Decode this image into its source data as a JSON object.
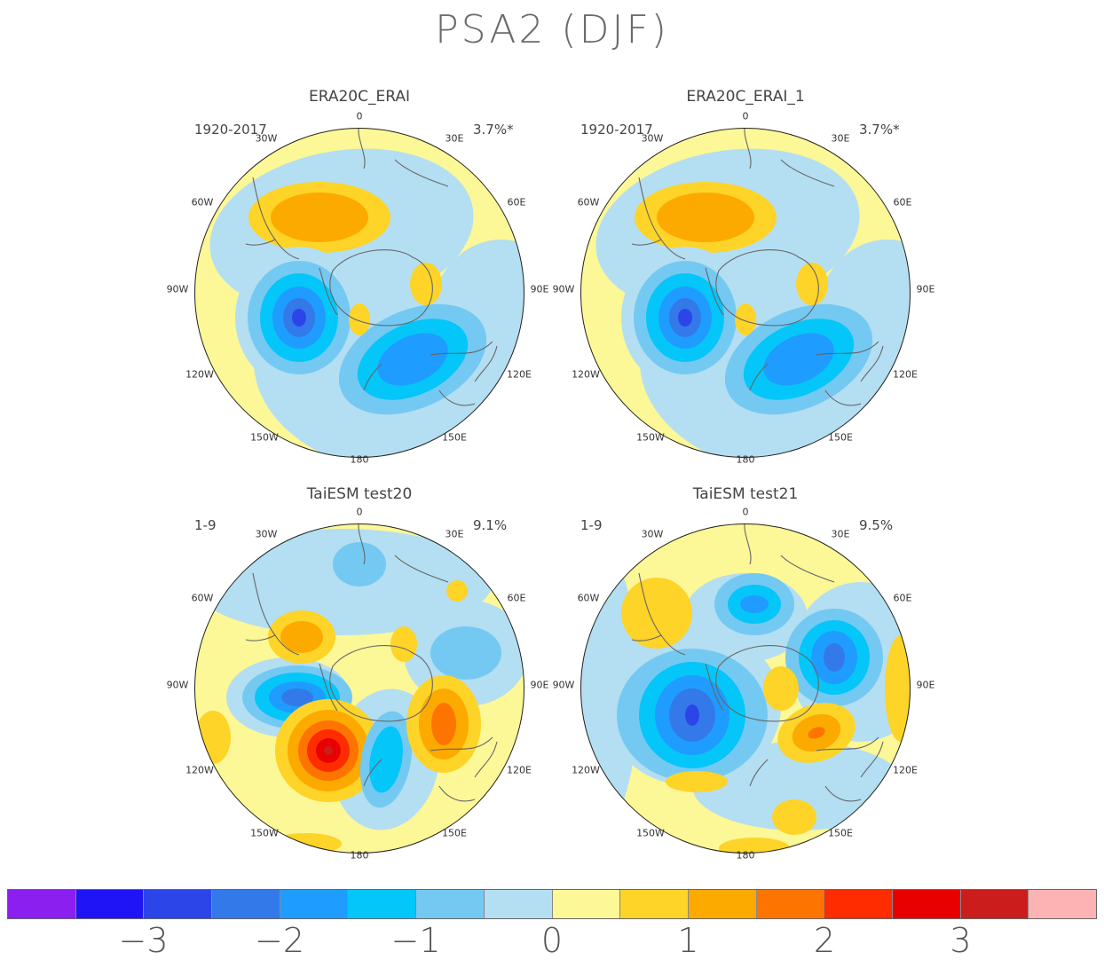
{
  "title": "PSA2 (DJF)",
  "panels": [
    {
      "id": "p1",
      "title": "ERA20C_ERAI",
      "period": "1920-2017",
      "variance": "3.7%*"
    },
    {
      "id": "p2",
      "title": "ERA20C_ERAI_1",
      "period": "1920-2017",
      "variance": "3.7%*"
    },
    {
      "id": "p3",
      "title": "TaiESM test20",
      "period": "1-9",
      "variance": "9.1%"
    },
    {
      "id": "p4",
      "title": "TaiESM test21",
      "period": "1-9",
      "variance": "9.5%"
    }
  ],
  "longitude_labels": {
    "n0": "0",
    "n30w": "30W",
    "n30e": "30E",
    "n60w": "60W",
    "n60e": "60E",
    "n90w": "90W",
    "n90e": "90E",
    "n120w": "120W",
    "n120e": "120E",
    "n150w": "150W",
    "n150e": "150E",
    "n180": "180"
  },
  "colorbar": {
    "colors": [
      "#8b1ff0",
      "#1f14f5",
      "#2b45e8",
      "#3479e9",
      "#1f9cff",
      "#05c6f8",
      "#74c9f2",
      "#b4def2",
      "#fcf797",
      "#fdd427",
      "#fcaa00",
      "#fd7500",
      "#ff2c00",
      "#e80000",
      "#cc1d1d",
      "#fdb3b3"
    ],
    "labels": [
      "−3",
      "−2",
      "−1",
      "0",
      "1",
      "2",
      "3"
    ]
  }
}
